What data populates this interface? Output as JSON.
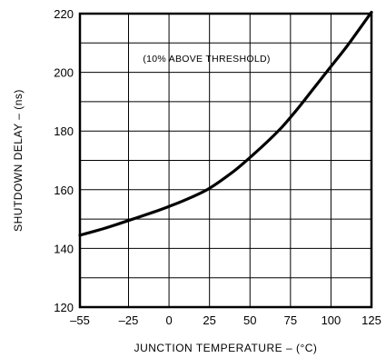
{
  "chart_data": {
    "type": "line",
    "xlabel": "JUNCTION TEMPERATURE – (°C)",
    "ylabel": "SHUTDOWN DELAY – (ns)",
    "annotation": "(10% ABOVE THRESHOLD)",
    "xlim": [
      -55,
      125
    ],
    "ylim": [
      120,
      220
    ],
    "x_ticks": [
      -55,
      -25,
      0,
      25,
      50,
      75,
      100,
      125
    ],
    "y_ticks": [
      120,
      140,
      160,
      180,
      200,
      220
    ],
    "x_tick_labels": [
      "–55",
      "–25",
      "0",
      "25",
      "50",
      "75",
      "100",
      "125"
    ],
    "y_tick_labels": [
      "120",
      "140",
      "160",
      "180",
      "200",
      "220"
    ],
    "grid": true,
    "series": [
      {
        "x": [
          -55,
          -40,
          -25,
          -10,
          0,
          10,
          25,
          40,
          50,
          60,
          70,
          80,
          90,
          100,
          110,
          125
        ],
        "y": [
          144.5,
          146.8,
          149.5,
          152.3,
          154.3,
          156.5,
          160.5,
          166.3,
          171,
          176,
          181.5,
          188,
          195,
          202,
          209,
          220.5
        ]
      }
    ],
    "colors": {
      "line": "#000000",
      "grid": "#000000",
      "background": "#ffffff"
    }
  }
}
